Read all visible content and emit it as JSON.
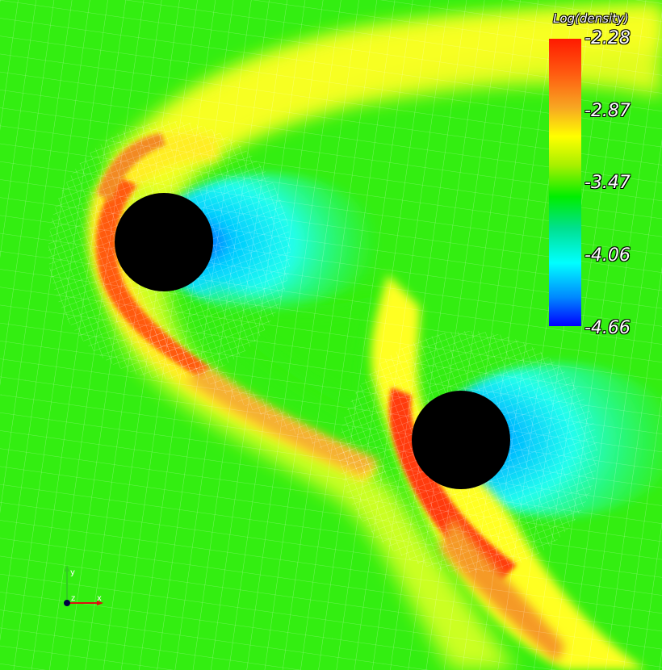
{
  "colorbar": {
    "title": "Log(density)",
    "ticks": [
      "-2.28",
      "-2.87",
      "-3.47",
      "-4.06",
      "-4.66"
    ]
  },
  "axes": {
    "x_label": "x",
    "y_label": "y",
    "z_label": "z"
  },
  "colors": {
    "background_green": "#33ee11",
    "shock_yellow": "#ffff22",
    "shock_red": "#ff5a10",
    "wake_cyan": "#22ffff",
    "body_black": "#000000"
  }
}
